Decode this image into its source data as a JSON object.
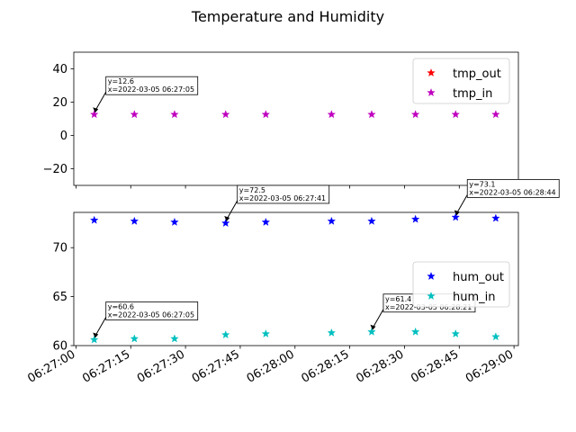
{
  "chart_data": {
    "title": "Temperature and Humidity",
    "x_tick_labels": [
      "06:27:00",
      "06:27:15",
      "06:27:30",
      "06:27:45",
      "06:28:00",
      "06:28:15",
      "06:28:30",
      "06:28:45",
      "06:29:00"
    ],
    "x_ticks_seconds_since_0627": [
      0,
      15,
      30,
      45,
      60,
      75,
      90,
      105,
      120
    ],
    "subplots": [
      {
        "type": "scatter",
        "ylim": [
          -30,
          50
        ],
        "yticks": [
          -20,
          0,
          20,
          40
        ],
        "ytick_labels": [
          "−20",
          "0",
          "20",
          "40"
        ],
        "legend_position": "upper right",
        "series": [
          {
            "name": "tmp_out",
            "color": "#ff0000",
            "marker": "star",
            "x": [],
            "y": []
          },
          {
            "name": "tmp_in",
            "color": "#bf00bf",
            "marker": "star",
            "x": [
              "06:27:05",
              "06:27:16",
              "06:27:27",
              "06:27:41",
              "06:27:52",
              "06:28:10",
              "06:28:21",
              "06:28:33",
              "06:28:44",
              "06:28:55"
            ],
            "y": [
              12.6,
              12.6,
              12.6,
              12.6,
              12.6,
              12.6,
              12.6,
              12.6,
              12.6,
              12.6
            ]
          }
        ],
        "annotations": [
          {
            "series": "tmp_in",
            "line1": "y=12.6",
            "line2": "x=2022-03-05 06:27:05",
            "x": "06:27:05",
            "y": 12.6
          }
        ]
      },
      {
        "type": "scatter",
        "ylim": [
          60,
          73.6
        ],
        "yticks": [
          60,
          65,
          70
        ],
        "ytick_labels": [
          "60",
          "65",
          "70"
        ],
        "legend_position": "center right",
        "series": [
          {
            "name": "hum_out",
            "color": "#0000ff",
            "marker": "star",
            "x": [
              "06:27:05",
              "06:27:16",
              "06:27:27",
              "06:27:41",
              "06:27:52",
              "06:28:10",
              "06:28:21",
              "06:28:33",
              "06:28:44",
              "06:28:55"
            ],
            "y": [
              72.8,
              72.7,
              72.6,
              72.5,
              72.6,
              72.7,
              72.7,
              72.9,
              73.1,
              73.0
            ]
          },
          {
            "name": "hum_in",
            "color": "#00bfbf",
            "marker": "star",
            "x": [
              "06:27:05",
              "06:27:16",
              "06:27:27",
              "06:27:41",
              "06:27:52",
              "06:28:10",
              "06:28:21",
              "06:28:33",
              "06:28:44",
              "06:28:55"
            ],
            "y": [
              60.6,
              60.7,
              60.7,
              61.1,
              61.2,
              61.3,
              61.4,
              61.4,
              61.2,
              60.9
            ]
          }
        ],
        "annotations": [
          {
            "series": "hum_out",
            "line1": "y=72.5",
            "line2": "x=2022-03-05 06:27:41",
            "x": "06:27:41",
            "y": 72.5
          },
          {
            "series": "hum_out",
            "line1": "y=73.1",
            "line2": "x=2022-03-05 06:28:44",
            "x": "06:28:44",
            "y": 73.1
          },
          {
            "series": "hum_in",
            "line1": "y=60.6",
            "line2": "x=2022-03-05 06:27:05",
            "x": "06:27:05",
            "y": 60.6
          },
          {
            "series": "hum_in",
            "line1": "y=61.4",
            "line2": "x=2022-03-05 06:28:21",
            "x": "06:28:21",
            "y": 61.4
          }
        ]
      }
    ]
  }
}
